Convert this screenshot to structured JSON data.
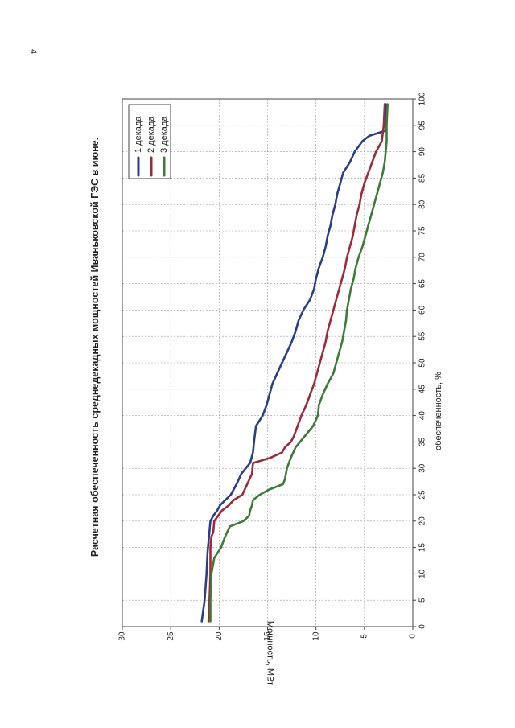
{
  "page": {
    "number": "4"
  },
  "chart_data": {
    "type": "line",
    "orientation": "rotated-90-ccw",
    "title": "Расчетная обеспеченность среднедекадных мощностей Иваньковской ГЭС в июне.",
    "xlabel": "обеспеченность, %",
    "ylabel": "Мощность, МВт",
    "xlim": [
      0,
      100
    ],
    "ylim": [
      0,
      30
    ],
    "x_ticks": [
      0,
      5,
      10,
      15,
      20,
      25,
      30,
      35,
      40,
      45,
      50,
      55,
      60,
      65,
      70,
      75,
      80,
      85,
      90,
      95,
      100
    ],
    "y_ticks": [
      0,
      5,
      10,
      15,
      20,
      25,
      30
    ],
    "grid": true,
    "legend_position": "top-right",
    "series": [
      {
        "name": "1 декада",
        "color": "#2a3f86",
        "x": [
          1,
          5,
          10,
          14,
          18,
          20,
          21,
          22,
          23,
          25,
          27,
          29,
          31,
          33,
          35,
          38,
          40,
          42,
          44,
          46,
          48,
          50,
          52,
          54,
          56,
          58,
          60,
          62,
          64,
          66,
          68,
          70,
          72,
          74,
          76,
          78,
          80,
          82,
          84,
          86,
          88,
          90,
          92,
          93,
          94,
          99
        ],
        "y": [
          21.8,
          21.5,
          21.3,
          21.2,
          21.0,
          20.9,
          20.6,
          20.2,
          19.9,
          18.8,
          18.2,
          17.7,
          16.8,
          16.5,
          16.4,
          16.2,
          15.5,
          15.1,
          14.8,
          14.5,
          14.0,
          13.5,
          13.0,
          12.5,
          12.1,
          11.8,
          11.3,
          10.6,
          10.2,
          10.0,
          9.7,
          9.3,
          9.0,
          8.8,
          8.5,
          8.3,
          8.0,
          7.8,
          7.5,
          7.2,
          6.5,
          6.0,
          5.2,
          4.5,
          2.8,
          2.8
        ]
      },
      {
        "name": "2 декада",
        "color": "#9e2a3a",
        "x": [
          1,
          5,
          10,
          15,
          17,
          18,
          20,
          21,
          22,
          23,
          24,
          25,
          27,
          29,
          31,
          32,
          33,
          34,
          35,
          36,
          38,
          40,
          42,
          44,
          46,
          48,
          50,
          52,
          54,
          56,
          58,
          60,
          62,
          64,
          66,
          68,
          70,
          72,
          74,
          76,
          78,
          80,
          82,
          84,
          86,
          88,
          90,
          92,
          95,
          99
        ],
        "y": [
          21.1,
          21.0,
          20.9,
          20.9,
          20.8,
          20.6,
          20.5,
          20.1,
          19.7,
          19.0,
          18.5,
          17.6,
          17.1,
          16.6,
          16.5,
          14.7,
          13.5,
          13.2,
          12.6,
          12.3,
          11.9,
          11.5,
          11.0,
          10.6,
          10.2,
          9.9,
          9.6,
          9.3,
          9.0,
          8.8,
          8.5,
          8.2,
          7.9,
          7.6,
          7.3,
          7.0,
          6.8,
          6.5,
          6.2,
          6.0,
          5.8,
          5.5,
          5.3,
          5.0,
          4.6,
          4.2,
          3.8,
          3.2,
          3.0,
          2.9
        ]
      },
      {
        "name": "3 декада",
        "color": "#3f7a3a",
        "x": [
          1,
          5,
          10,
          13,
          15,
          17,
          19,
          20,
          21,
          22,
          23,
          24,
          25,
          26,
          27,
          28,
          30,
          32,
          34,
          36,
          38,
          40,
          42,
          44,
          46,
          48,
          50,
          52,
          54,
          56,
          58,
          60,
          62,
          64,
          66,
          68,
          70,
          72,
          74,
          76,
          78,
          80,
          82,
          84,
          86,
          88,
          90,
          92,
          95,
          99
        ],
        "y": [
          20.9,
          20.9,
          20.8,
          20.5,
          19.8,
          19.4,
          18.9,
          17.5,
          16.9,
          16.8,
          16.6,
          16.5,
          15.8,
          14.8,
          13.4,
          13.2,
          13.0,
          12.6,
          12.1,
          11.2,
          10.3,
          9.8,
          9.7,
          9.3,
          8.8,
          8.2,
          7.9,
          7.6,
          7.3,
          7.1,
          6.9,
          6.8,
          6.6,
          6.4,
          6.1,
          5.9,
          5.6,
          5.2,
          4.9,
          4.6,
          4.3,
          4.0,
          3.7,
          3.4,
          3.1,
          2.9,
          2.8,
          2.7,
          2.7,
          2.6
        ]
      }
    ]
  }
}
